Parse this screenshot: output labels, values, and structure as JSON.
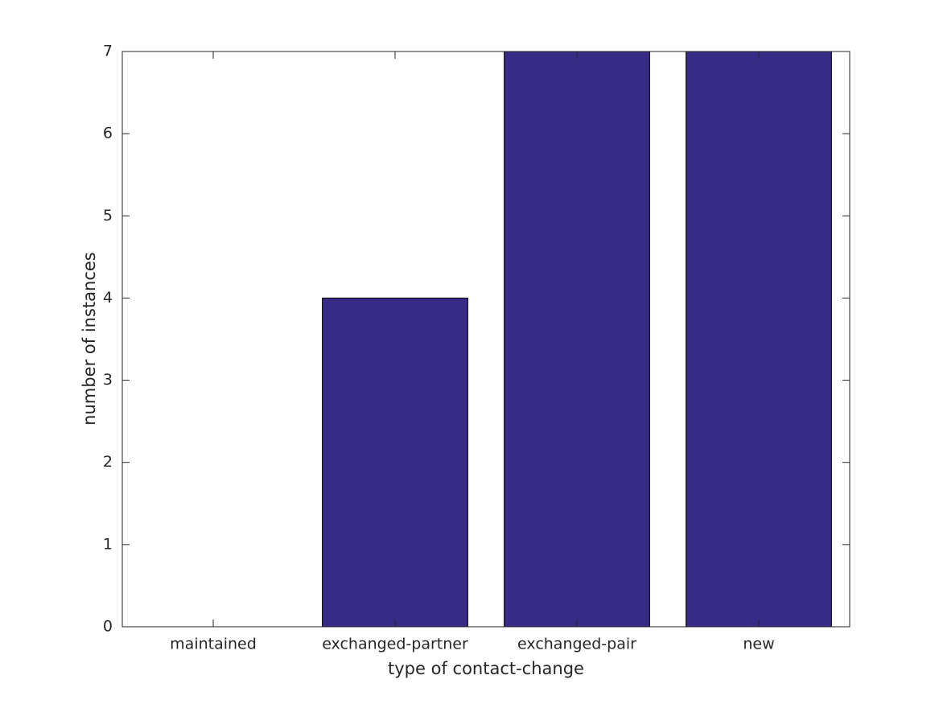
{
  "chart_data": {
    "type": "bar",
    "xlabel": "type of contact-change",
    "ylabel": "number of instances",
    "categories": [
      "maintained",
      "exchanged-partner",
      "exchanged-pair",
      "new"
    ],
    "values": [
      0,
      4,
      7,
      7
    ],
    "color": "#372b86",
    "ylim": [
      0,
      7
    ],
    "yticks": [
      0,
      1,
      2,
      3,
      4,
      5,
      6,
      7
    ]
  }
}
